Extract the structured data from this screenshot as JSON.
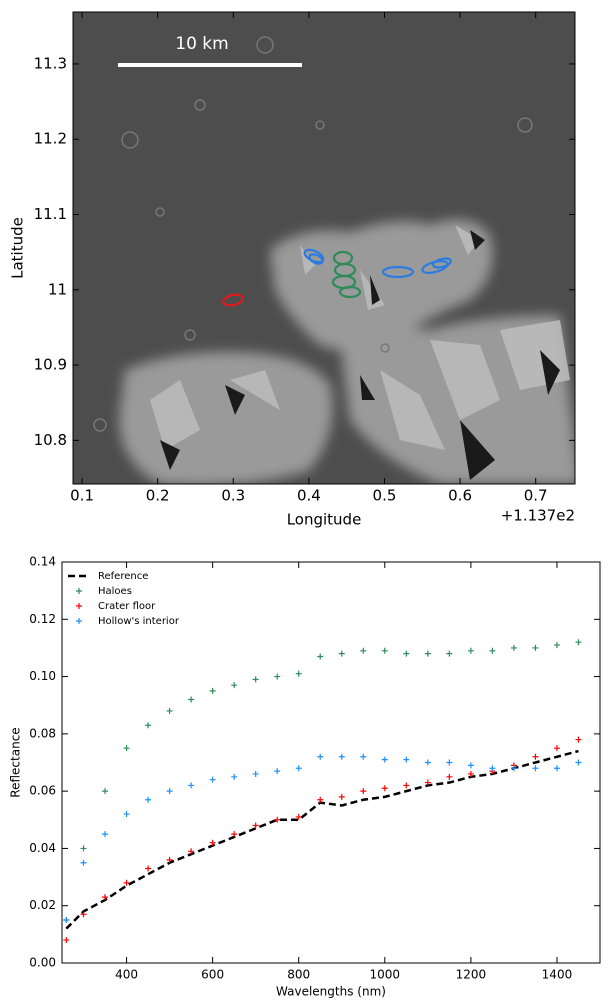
{
  "chart_data": [
    {
      "type": "image",
      "xlabel": "Longitude",
      "ylabel": "Latitude",
      "offset_label": "+1.137e2",
      "scale_bar_label": "10 km",
      "xlim": [
        0.088,
        0.752
      ],
      "ylim": [
        10.742,
        11.369
      ],
      "xticks": [
        0.1,
        0.2,
        0.3,
        0.4,
        0.5,
        0.6,
        0.7
      ],
      "yticks": [
        10.8,
        10.9,
        11.0,
        11.1,
        11.2,
        11.3
      ]
    },
    {
      "type": "scatter",
      "xlabel": "Wavelengths (nm)",
      "ylabel": "Reflectance",
      "legend": "upper left",
      "xlim": [
        250,
        1500
      ],
      "ylim": [
        0,
        0.14
      ],
      "xticks": [
        400,
        600,
        800,
        1000,
        1200,
        1400
      ],
      "yticks": [
        {
          "value": 0,
          "label": "0.00"
        },
        {
          "value": 0.02,
          "label": "0.02"
        },
        {
          "value": 0.04,
          "label": "0.04"
        },
        {
          "value": 0.06,
          "label": "0.06"
        },
        {
          "value": 0.08,
          "label": "0.08"
        },
        {
          "value": 0.1,
          "label": "0.10"
        },
        {
          "value": 0.12,
          "label": "0.12"
        },
        {
          "value": 0.14,
          "label": "0.14"
        }
      ],
      "x": [
        260,
        300,
        350,
        400,
        450,
        500,
        550,
        600,
        650,
        700,
        750,
        800,
        850,
        900,
        950,
        1000,
        1050,
        1100,
        1150,
        1200,
        1250,
        1300,
        1350,
        1400,
        1450
      ],
      "series": [
        {
          "name": "Reference",
          "color": "#000000",
          "style": "dashed",
          "values": [
            0.012,
            0.018,
            0.022,
            0.027,
            0.031,
            0.035,
            0.038,
            0.041,
            0.044,
            0.047,
            0.05,
            0.05,
            0.056,
            0.055,
            0.057,
            0.058,
            0.06,
            0.062,
            0.063,
            0.065,
            0.066,
            0.068,
            0.07,
            0.072,
            0.074
          ]
        },
        {
          "name": "Haloes",
          "color": "#2e8b57",
          "style": "plus",
          "values": [
            0.015,
            0.04,
            0.06,
            0.075,
            0.083,
            0.088,
            0.092,
            0.095,
            0.097,
            0.099,
            0.1,
            0.101,
            0.107,
            0.108,
            0.109,
            0.109,
            0.108,
            0.108,
            0.108,
            0.109,
            0.109,
            0.11,
            0.11,
            0.111,
            0.112
          ]
        },
        {
          "name": "Crater floor",
          "color": "#ff0000",
          "style": "plus",
          "values": [
            0.008,
            0.017,
            0.023,
            0.028,
            0.033,
            0.036,
            0.039,
            0.042,
            0.045,
            0.048,
            0.05,
            0.051,
            0.057,
            0.058,
            0.06,
            0.061,
            0.062,
            0.063,
            0.065,
            0.066,
            0.067,
            0.069,
            0.072,
            0.075,
            0.078
          ]
        },
        {
          "name": "Hollow's interior",
          "color": "#1e90ff",
          "style": "plus",
          "values": [
            0.015,
            0.035,
            0.045,
            0.052,
            0.057,
            0.06,
            0.062,
            0.064,
            0.065,
            0.066,
            0.067,
            0.068,
            0.072,
            0.072,
            0.072,
            0.071,
            0.071,
            0.07,
            0.07,
            0.069,
            0.068,
            0.068,
            0.068,
            0.068,
            0.07
          ]
        }
      ]
    }
  ]
}
